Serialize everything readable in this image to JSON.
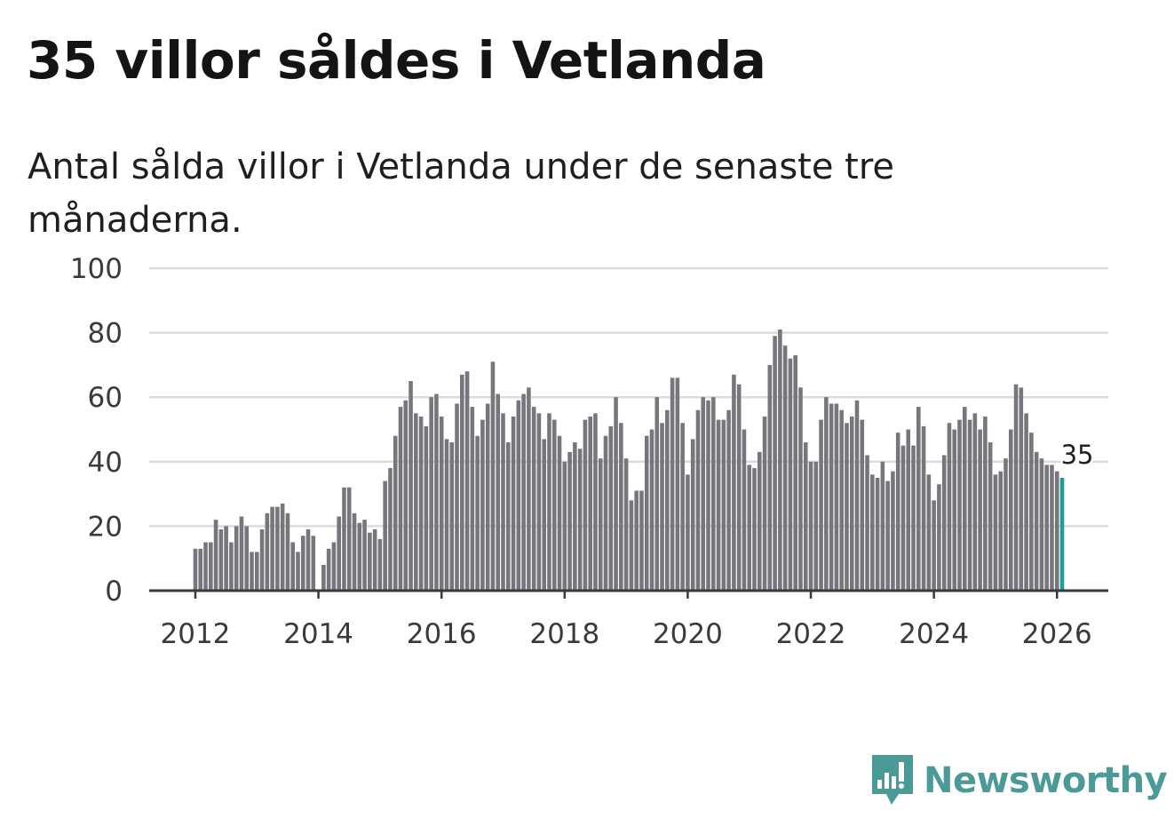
{
  "title": "35 villor såldes i Vetlanda",
  "subtitle": "Antal sålda villor i Vetlanda under de senaste tre månaderna.",
  "brand": {
    "name": "Newsworthy",
    "color": "#4b9a97"
  },
  "colors": {
    "bar": "#76767c",
    "highlight": "#1f9e99",
    "grid": "#dcdcdc",
    "axis": "#3a3a3a"
  },
  "chart_data": {
    "type": "bar",
    "title": "35 villor såldes i Vetlanda",
    "xlabel": "",
    "ylabel": "",
    "ylim": [
      0,
      100
    ],
    "yticks": [
      "0",
      "20",
      "40",
      "60",
      "80",
      "100"
    ],
    "xticks": [
      "2012",
      "2014",
      "2016",
      "2018",
      "2020",
      "2022",
      "2024",
      "2026"
    ],
    "xrange": [
      "2011-04",
      "2026-11"
    ],
    "start_month": "2012-01",
    "grid": true,
    "series": [
      {
        "name": "Antal sålda villor (rullande tre månader)",
        "values": [
          13,
          13,
          15,
          15,
          22,
          19,
          20,
          15,
          20,
          23,
          20,
          12,
          12,
          19,
          24,
          26,
          26,
          27,
          24,
          15,
          12,
          17,
          19,
          17,
          0,
          8,
          13,
          15,
          23,
          32,
          32,
          24,
          21,
          22,
          18,
          19,
          16,
          34,
          38,
          48,
          57,
          59,
          65,
          55,
          54,
          51,
          60,
          61,
          54,
          47,
          46,
          58,
          67,
          68,
          57,
          48,
          53,
          58,
          71,
          61,
          55,
          46,
          54,
          59,
          61,
          63,
          57,
          55,
          47,
          55,
          53,
          48,
          40,
          43,
          46,
          44,
          53,
          54,
          55,
          41,
          48,
          51,
          60,
          52,
          41,
          28,
          31,
          31,
          48,
          50,
          60,
          52,
          56,
          66,
          66,
          52,
          36,
          47,
          56,
          60,
          59,
          60,
          53,
          53,
          56,
          67,
          64,
          50,
          39,
          38,
          43,
          54,
          70,
          79,
          81,
          76,
          72,
          73,
          63,
          46,
          40,
          40,
          53,
          60,
          58,
          58,
          56,
          52,
          54,
          59,
          53,
          42,
          36,
          35,
          40,
          34,
          37,
          49,
          45,
          50,
          45,
          57,
          51,
          36,
          28,
          33,
          42,
          52,
          50,
          53,
          57,
          53,
          55,
          50,
          54,
          46,
          36,
          37,
          41,
          50,
          64,
          63,
          55,
          49,
          43,
          41,
          39,
          39,
          37,
          35
        ]
      }
    ],
    "highlight": {
      "label": "35",
      "value": 35,
      "month": "2026-02"
    }
  }
}
